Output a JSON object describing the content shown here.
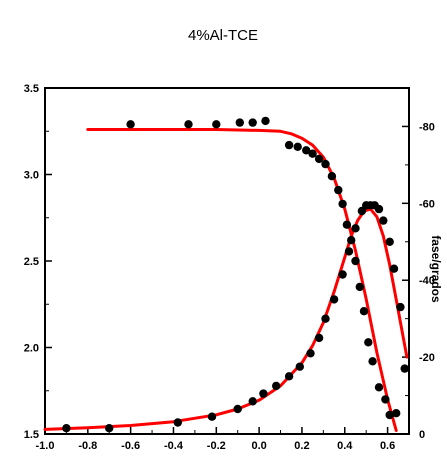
{
  "chart_data": {
    "type": "scatter",
    "title": "4%Al-TCE",
    "xlabel": "",
    "ylabel": "",
    "y2label": "fase/grados",
    "xlim": [
      -1.0,
      0.7
    ],
    "ylim": [
      1.5,
      3.5
    ],
    "y2lim": [
      0,
      -90
    ],
    "x_ticks": [
      "-1.0",
      "-0.8",
      "-0.6",
      "-0.4",
      "-0.2",
      "0.0",
      "0.2",
      "0.4",
      "0.6"
    ],
    "y_ticks": [
      "1.5",
      "2.0",
      "2.5",
      "3.0",
      "3.5"
    ],
    "y2_ticks": [
      "0",
      "-20",
      "-40",
      "-60",
      "-80"
    ],
    "grid": false,
    "colors": {
      "points": "#000000",
      "fit": "#ff0000",
      "axes": "#000000"
    },
    "series": [
      {
        "axis": "left",
        "style": "points",
        "x": [
          -0.6,
          -0.33,
          -0.2,
          -0.09,
          -0.03,
          0.03,
          0.14,
          0.18,
          0.22,
          0.25,
          0.28,
          0.31,
          0.34,
          0.37,
          0.39,
          0.41,
          0.43,
          0.45,
          0.47,
          0.49,
          0.51,
          0.53,
          0.56,
          0.59,
          0.61,
          0.64
        ],
        "y": [
          3.29,
          3.29,
          3.29,
          3.3,
          3.3,
          3.31,
          3.17,
          3.16,
          3.14,
          3.12,
          3.09,
          3.06,
          2.99,
          2.91,
          2.83,
          2.71,
          2.62,
          2.5,
          2.35,
          2.21,
          2.03,
          1.92,
          1.77,
          1.7,
          1.61,
          1.62
        ]
      },
      {
        "axis": "left",
        "style": "line",
        "x": [
          -0.8,
          -0.6,
          -0.4,
          -0.2,
          0.0,
          0.1,
          0.15,
          0.2,
          0.25,
          0.3,
          0.35,
          0.4,
          0.45,
          0.5,
          0.55,
          0.6,
          0.64
        ],
        "y": [
          3.26,
          3.26,
          3.26,
          3.26,
          3.255,
          3.25,
          3.235,
          3.21,
          3.17,
          3.1,
          2.98,
          2.8,
          2.56,
          2.28,
          1.97,
          1.7,
          1.52
        ]
      },
      {
        "axis": "right",
        "style": "points",
        "x": [
          -0.9,
          -0.7,
          -0.38,
          -0.22,
          -0.1,
          -0.03,
          0.02,
          0.08,
          0.14,
          0.19,
          0.24,
          0.28,
          0.31,
          0.35,
          0.39,
          0.42,
          0.45,
          0.48,
          0.5,
          0.52,
          0.54,
          0.56,
          0.58,
          0.61,
          0.63,
          0.66,
          0.68
        ],
        "y": [
          -1.5,
          -1.5,
          -3,
          -4.5,
          -6.5,
          -8.5,
          -10.5,
          -12.5,
          -15,
          -17.5,
          -21,
          -25,
          -30,
          -35,
          -41.5,
          -47.5,
          -53.5,
          -58,
          -59.5,
          -59.5,
          -59.5,
          -58.5,
          -55.5,
          -50,
          -43,
          -33,
          -17
        ]
      },
      {
        "axis": "right",
        "style": "line",
        "x": [
          -1.0,
          -0.8,
          -0.6,
          -0.4,
          -0.2,
          -0.1,
          0.0,
          0.1,
          0.2,
          0.25,
          0.3,
          0.35,
          0.4,
          0.43,
          0.46,
          0.49,
          0.52,
          0.55,
          0.58,
          0.61,
          0.64,
          0.67,
          0.69
        ],
        "y": [
          -1.2,
          -1.6,
          -2.2,
          -3.2,
          -5.0,
          -6.5,
          -8.8,
          -12.5,
          -18.5,
          -23.0,
          -29.0,
          -37.0,
          -46.0,
          -51.5,
          -55.5,
          -58.0,
          -58.5,
          -56.5,
          -51.5,
          -44.0,
          -35.0,
          -26.0,
          -20.0
        ]
      }
    ]
  }
}
